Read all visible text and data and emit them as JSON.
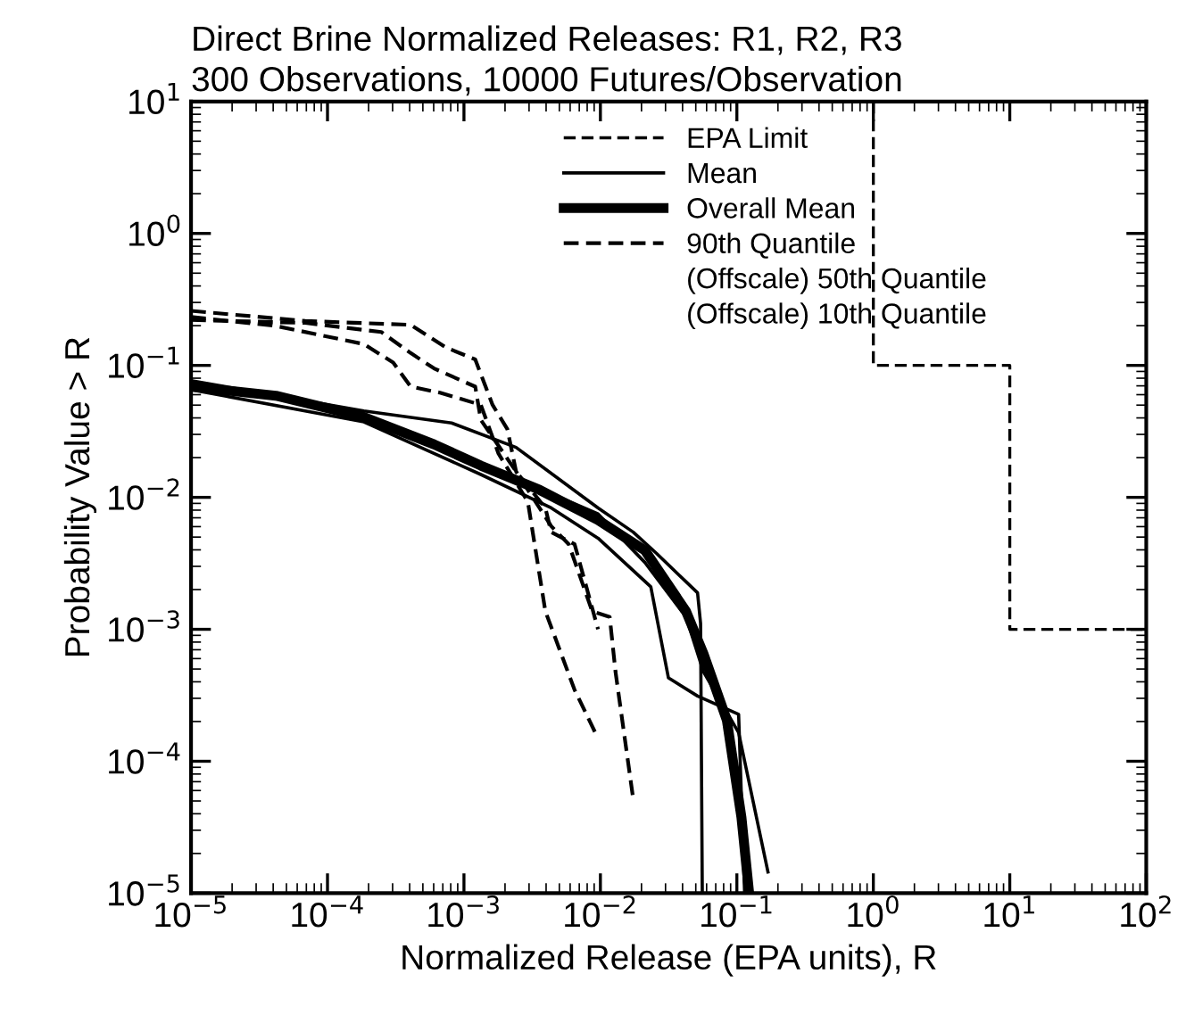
{
  "chart_data": {
    "type": "line",
    "title": "Direct Brine Normalized Releases: R1, R2, R3",
    "subtitle": "300 Observations, 10000 Futures/Observation",
    "xlabel": "Normalized Release (EPA units), R",
    "ylabel": "Probability Value > R",
    "log": "xy",
    "xlim": [
      1e-05,
      100
    ],
    "ylim": [
      1e-05,
      10
    ],
    "xticks": [
      {
        "value": 1e-05,
        "label": "10$^{−5}$"
      },
      {
        "value": 0.0001,
        "label": "10$^{−4}$"
      },
      {
        "value": 0.001,
        "label": "10$^{−3}$"
      },
      {
        "value": 0.01,
        "label": "10$^{−2}$"
      },
      {
        "value": 0.1,
        "label": "10$^{−1}$"
      },
      {
        "value": 1,
        "label": "10$^{0}$"
      },
      {
        "value": 10,
        "label": "10$^{1}$"
      },
      {
        "value": 100,
        "label": "10$^{2}$"
      }
    ],
    "yticks": [
      {
        "value": 1e-05,
        "label": "10$^{−5}$"
      },
      {
        "value": 0.0001,
        "label": "10$^{−4}$"
      },
      {
        "value": 0.001,
        "label": "10$^{−3}$"
      },
      {
        "value": 0.01,
        "label": "10$^{−2}$"
      },
      {
        "value": 0.1,
        "label": "10$^{−1}$"
      },
      {
        "value": 1,
        "label": "10$^{0}$"
      },
      {
        "value": 10,
        "label": "10$^{1}$"
      }
    ],
    "legend": "top right",
    "grid": false,
    "marker": "none",
    "annotations": [
      "(Offscale) 50th Quantile",
      "(Offscale) 10th Quantile"
    ],
    "series": [
      {
        "name": "EPA Limit",
        "color": "#000000",
        "line_style": "dashed",
        "x": [
          1,
          1,
          10,
          10,
          100
        ],
        "values": [
          10,
          0.1,
          0.1,
          0.001,
          0.001
        ]
      },
      {
        "name": "Mean",
        "color": "#000000",
        "line_style": "solid",
        "x": [
          1e-05,
          0.000185,
          0.000812,
          0.00241,
          0.00961,
          0.0174,
          0.0258,
          0.0515,
          0.0542,
          0.0558
        ],
        "values": [
          0.0767,
          0.0452,
          0.0366,
          0.0239,
          0.00832,
          0.00545,
          0.00376,
          0.00189,
          0.00111,
          1e-05
        ]
      },
      {
        "color": "#000000",
        "line_style": "solid",
        "x": [
          1e-05,
          0.000185,
          0.00133,
          0.00436,
          0.00961,
          0.0234,
          0.0315,
          0.0515,
          0.103,
          0.114
        ],
        "values": [
          0.0655,
          0.0373,
          0.0149,
          0.00832,
          0.0049,
          0.0021,
          0.000429,
          0.000312,
          0.000227,
          1e-05
        ]
      },
      {
        "color": "#000000",
        "line_style": "solid",
        "x": [
          1e-05,
          0.000185,
          0.00133,
          0.00294,
          0.00961,
          0.0212,
          0.0424,
          0.0569,
          0.103,
          0.169
        ],
        "values": [
          0.0728,
          0.0429,
          0.0174,
          0.0127,
          0.00748,
          0.00321,
          0.00124,
          0.000477,
          0.000165,
          1.45e-05
        ]
      },
      {
        "name": "Overall Mean",
        "color": "#000000",
        "line_style": "solid",
        "x": [
          1e-05,
          4.19e-05,
          0.000185,
          0.000604,
          0.00133,
          0.00358,
          0.00961,
          0.0212,
          0.0424,
          0.0569,
          0.0845,
          0.108,
          0.123
        ],
        "values": [
          0.069,
          0.0589,
          0.0406,
          0.0252,
          0.0174,
          0.0114,
          0.00673,
          0.00396,
          0.00137,
          0.000655,
          0.000204,
          3.76e-05,
          1e-05
        ]
      },
      {
        "name": "90th Quantile",
        "color": "#000000",
        "line_style": "dashed",
        "x": [
          1e-05,
          6.87e-05,
          0.000407,
          0.000736,
          0.00121,
          0.00162,
          0.00208,
          0.00241,
          0.00436,
          0.00586,
          0.00871,
          0.0117,
          0.0129,
          0.0174
        ],
        "values": [
          0.259,
          0.217,
          0.203,
          0.137,
          0.111,
          0.0502,
          0.0329,
          0.0157,
          0.00605,
          0.00441,
          0.00137,
          0.00124,
          0.000477,
          5.16e-05
        ]
      },
      {
        "color": "#000000",
        "line_style": "dashed",
        "x": [
          1e-05,
          6.87e-05,
          0.000248,
          0.000407,
          0.000604,
          0.00121,
          0.00133,
          0.00241,
          0.00395,
          0.00436,
          0.00647,
          0.00961
        ],
        "values": [
          0.221,
          0.21,
          0.179,
          0.124,
          0.0948,
          0.069,
          0.0386,
          0.0157,
          0.00832,
          0.00545,
          0.00441,
          0.001
        ]
      },
      {
        "color": "#000000",
        "line_style": "dashed",
        "x": [
          1e-05,
          4.19e-05,
          0.000185,
          0.000303,
          0.000407,
          0.000667,
          0.00133,
          0.00179,
          0.00294,
          0.00395,
          0.00647,
          0.00961
        ],
        "values": [
          0.233,
          0.199,
          0.145,
          0.105,
          0.069,
          0.0621,
          0.0502,
          0.0215,
          0.00924,
          0.00137,
          0.000347,
          0.000149
        ]
      }
    ]
  }
}
